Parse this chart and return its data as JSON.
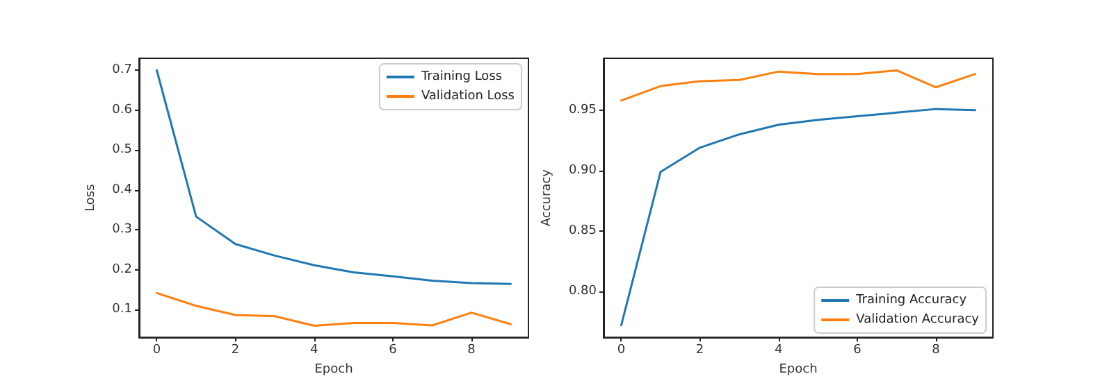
{
  "chart_data": [
    {
      "type": "line",
      "xlabel": "Epoch",
      "ylabel": "Loss",
      "x": [
        0,
        1,
        2,
        3,
        4,
        5,
        6,
        7,
        8,
        9
      ],
      "xlim": [
        -0.45,
        9.45
      ],
      "xticks": [
        0,
        2,
        4,
        6,
        8
      ],
      "ylim": [
        0.03,
        0.73
      ],
      "yticks": [
        0.1,
        0.2,
        0.3,
        0.4,
        0.5,
        0.6,
        0.7
      ],
      "legend": "top right",
      "grid": false,
      "marker": "none",
      "line_style": "solid",
      "series": [
        {
          "name": "Training Loss",
          "color": "#1f77b4",
          "values": [
            0.7,
            0.333,
            0.264,
            0.235,
            0.211,
            0.193,
            0.183,
            0.172,
            0.166,
            0.164
          ]
        },
        {
          "name": "Validation Loss",
          "color": "#ff7f0e",
          "values": [
            0.141,
            0.109,
            0.086,
            0.083,
            0.059,
            0.066,
            0.066,
            0.06,
            0.092,
            0.063
          ]
        }
      ]
    },
    {
      "type": "line",
      "xlabel": "Epoch",
      "ylabel": "Accuracy",
      "x": [
        0,
        1,
        2,
        3,
        4,
        5,
        6,
        7,
        8,
        9
      ],
      "xlim": [
        -0.45,
        9.45
      ],
      "xticks": [
        0,
        2,
        4,
        6,
        8
      ],
      "ylim": [
        0.762,
        0.993
      ],
      "yticks": [
        {
          "value": 0.8,
          "label": "0.80"
        },
        {
          "value": 0.85,
          "label": "0.85"
        },
        {
          "value": 0.9,
          "label": "0.90"
        },
        {
          "value": 0.95,
          "label": "0.95"
        }
      ],
      "legend": "bottom right",
      "grid": false,
      "marker": "none",
      "line_style": "solid",
      "series": [
        {
          "name": "Training Accuracy",
          "color": "#1f77b4",
          "values": [
            0.772,
            0.899,
            0.919,
            0.93,
            0.938,
            0.942,
            0.945,
            0.948,
            0.951,
            0.95
          ]
        },
        {
          "name": "Validation Accuracy",
          "color": "#ff7f0e",
          "values": [
            0.958,
            0.97,
            0.974,
            0.975,
            0.982,
            0.98,
            0.98,
            0.983,
            0.969,
            0.98
          ]
        }
      ]
    }
  ]
}
